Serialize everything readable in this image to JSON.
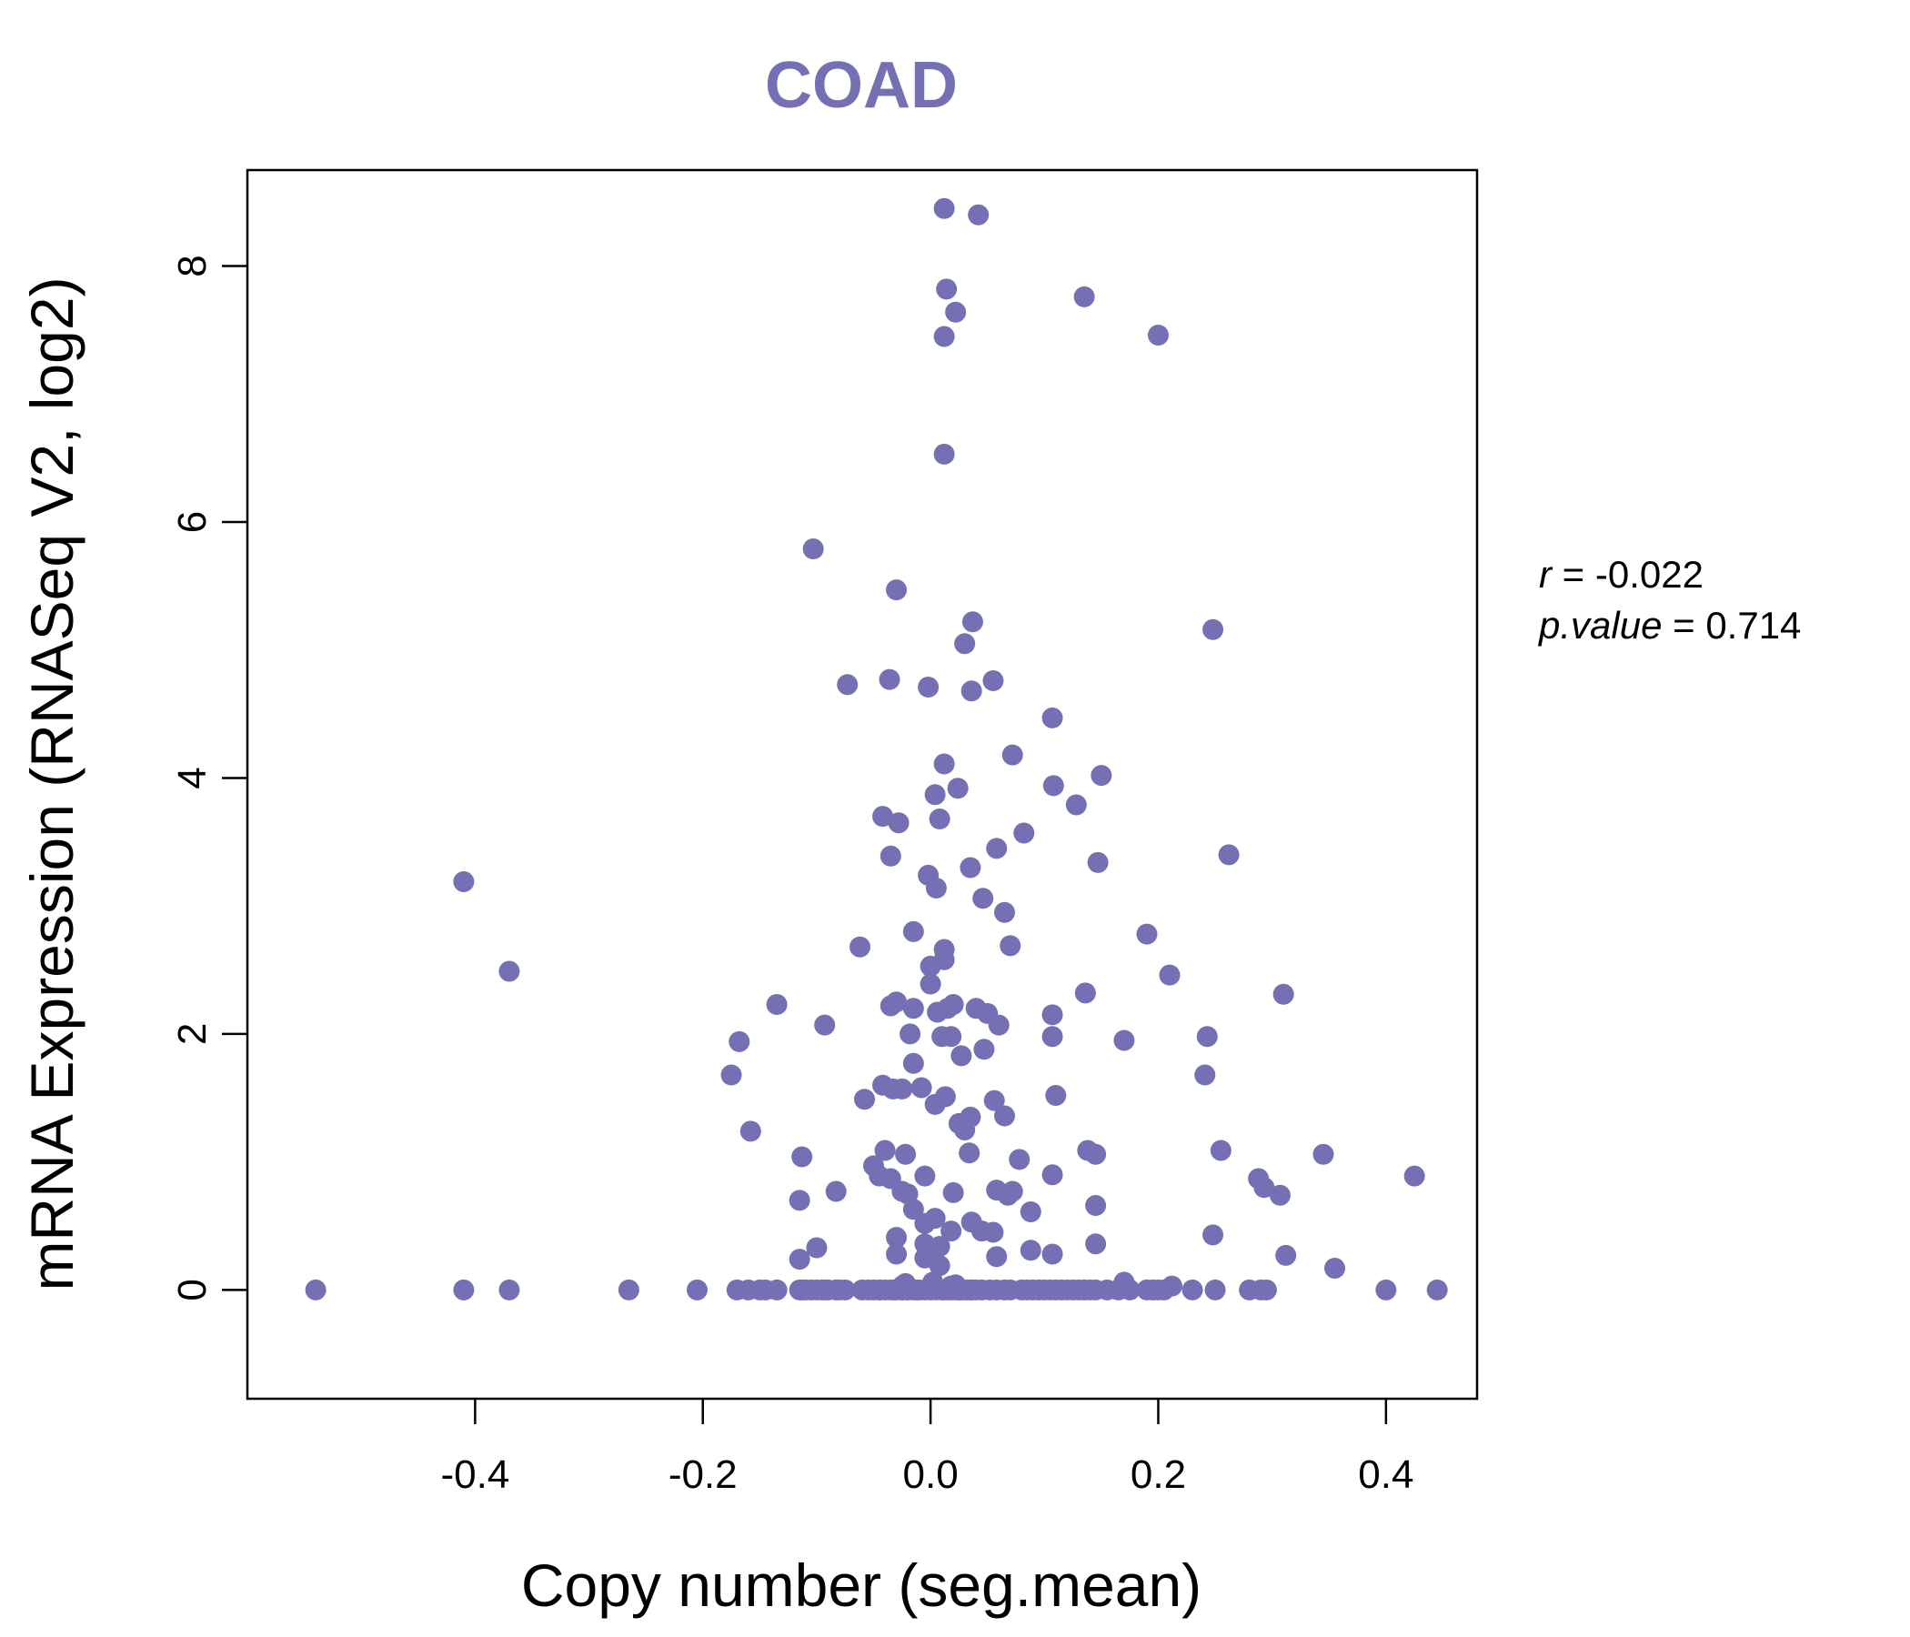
{
  "chart_data": {
    "type": "scatter",
    "title": "COAD",
    "xlabel": "Copy number (seg.mean)",
    "ylabel": "mRNA Expression (RNASeq V2, log2)",
    "xlim": [
      -0.6,
      0.48
    ],
    "ylim": [
      -0.85,
      8.75
    ],
    "xticks": [
      -0.4,
      -0.2,
      0.0,
      0.2,
      0.4
    ],
    "xtick_labels": [
      "-0.4",
      "-0.2",
      "0.0",
      "0.2",
      "0.4"
    ],
    "yticks": [
      0,
      2,
      4,
      6,
      8
    ],
    "ytick_labels": [
      "0",
      "2",
      "4",
      "6",
      "8"
    ],
    "grid": false,
    "legend": "none",
    "point_color": "#7570B3",
    "stats": {
      "r_label": "r",
      "r_value": "-0.022",
      "p_label": "p.value",
      "p_value": "0.714"
    },
    "x": [
      -0.54,
      -0.41,
      -0.37,
      -0.265,
      -0.205,
      -0.17,
      -0.16,
      -0.15,
      -0.145,
      -0.135,
      -0.115,
      -0.113,
      -0.11,
      -0.105,
      -0.1,
      -0.092,
      -0.083,
      -0.075,
      -0.06,
      -0.055,
      -0.045,
      -0.04,
      -0.035,
      -0.032,
      -0.03,
      -0.025,
      -0.02,
      -0.015,
      -0.01,
      -0.005,
      0.0,
      0.005,
      0.01,
      0.012,
      0.015,
      0.018,
      0.022,
      0.028,
      0.032,
      0.036,
      0.04,
      0.045,
      0.052,
      0.058,
      0.065,
      0.07,
      0.012,
      0.042,
      0.014,
      0.022,
      0.012,
      0.135,
      0.2,
      0.012,
      -0.103,
      -0.03,
      0.037,
      0.03,
      0.248,
      -0.073,
      -0.036,
      -0.002,
      0.036,
      0.055,
      0.107,
      0.012,
      0.072,
      0.15,
      0.108,
      0.024,
      0.004,
      0.128,
      -0.042,
      -0.028,
      0.008,
      0.082,
      0.058,
      -0.035,
      0.262,
      0.147,
      0.035,
      -0.002,
      0.005,
      0.046,
      0.065,
      -0.41,
      0.19,
      -0.015,
      -0.062,
      0.07,
      0.012,
      0.0,
      0.012,
      -0.37,
      0.21,
      0.0,
      0.136,
      0.31,
      -0.03,
      -0.035,
      -0.135,
      0.04,
      0.02,
      0.015,
      0.05,
      -0.015,
      0.107,
      0.006,
      -0.093,
      0.06,
      -0.018,
      0.243,
      0.01,
      0.018,
      0.107,
      0.17,
      -0.168,
      0.047,
      0.027,
      -0.015,
      -0.175,
      0.241,
      -0.042,
      -0.025,
      -0.033,
      -0.008,
      0.11,
      -0.058,
      0.013,
      0.004,
      0.056,
      0.065,
      0.035,
      0.025,
      0.03,
      -0.158,
      0.255,
      0.138,
      0.145,
      0.034,
      -0.04,
      0.345,
      -0.022,
      -0.113,
      0.078,
      -0.05,
      0.425,
      0.107,
      -0.005,
      -0.035,
      0.288,
      -0.045,
      0.293,
      0.058,
      -0.025,
      -0.02,
      0.072,
      0.02,
      0.307,
      -0.083,
      0.068,
      -0.115,
      0.145,
      0.088,
      -0.015,
      0.004,
      0.036,
      -0.005,
      0.018,
      0.045,
      0.055,
      0.248,
      -0.03,
      0.008,
      0.145,
      -0.005,
      0.088,
      0.312,
      0.107,
      -0.1,
      0.058,
      -0.03,
      -0.005,
      0.355,
      -0.115,
      0.008,
      -0.022,
      0.002,
      0.17,
      -0.025,
      0.018,
      0.212,
      0.022,
      0.08,
      0.085,
      0.09,
      0.095,
      0.1,
      0.105,
      0.11,
      0.115,
      0.12,
      0.125,
      0.13,
      0.135,
      0.14,
      0.145,
      0.155,
      0.165,
      0.175,
      0.19,
      0.195,
      0.2,
      0.205,
      0.23,
      0.25,
      0.28,
      0.29,
      0.295,
      0.4,
      0.445,
      -0.08,
      -0.09,
      -0.095,
      -0.05,
      -0.045,
      -0.025,
      -0.012,
      0.025,
      0.035,
      -0.02,
      0.026
    ],
    "y": [
      0,
      0,
      0,
      0,
      0,
      0,
      0,
      0,
      0,
      0,
      0,
      0,
      0,
      0,
      0,
      0,
      0,
      0,
      0,
      0,
      0,
      0,
      0,
      0,
      0,
      0,
      0,
      0,
      0,
      0,
      0,
      0,
      0,
      0,
      0,
      0,
      0,
      0,
      0,
      0,
      0,
      0,
      0,
      0,
      0,
      0,
      8.45,
      8.4,
      7.82,
      7.64,
      7.45,
      7.76,
      7.46,
      6.53,
      5.79,
      5.47,
      5.22,
      5.05,
      5.16,
      4.73,
      4.77,
      4.71,
      4.68,
      4.76,
      4.47,
      4.11,
      4.18,
      4.02,
      3.94,
      3.92,
      3.87,
      3.79,
      3.7,
      3.65,
      3.68,
      3.57,
      3.45,
      3.39,
      3.4,
      3.34,
      3.3,
      3.24,
      3.14,
      3.06,
      2.95,
      3.19,
      2.78,
      2.8,
      2.68,
      2.69,
      2.66,
      2.53,
      2.58,
      2.49,
      2.46,
      2.39,
      2.32,
      2.31,
      2.25,
      2.22,
      2.23,
      2.2,
      2.23,
      2.2,
      2.16,
      2.2,
      2.15,
      2.17,
      2.07,
      2.07,
      2.0,
      1.98,
      1.98,
      1.98,
      1.98,
      1.95,
      1.94,
      1.88,
      1.83,
      1.77,
      1.68,
      1.68,
      1.6,
      1.57,
      1.57,
      1.58,
      1.52,
      1.49,
      1.51,
      1.45,
      1.48,
      1.36,
      1.35,
      1.3,
      1.25,
      1.24,
      1.09,
      1.09,
      1.06,
      1.07,
      1.09,
      1.06,
      1.06,
      1.04,
      1.02,
      0.97,
      0.89,
      0.9,
      0.89,
      0.87,
      0.87,
      0.89,
      0.8,
      0.78,
      0.77,
      0.75,
      0.77,
      0.76,
      0.74,
      0.77,
      0.74,
      0.7,
      0.66,
      0.61,
      0.63,
      0.56,
      0.53,
      0.52,
      0.46,
      0.46,
      0.45,
      0.43,
      0.41,
      0.34,
      0.36,
      0.36,
      0.31,
      0.27,
      0.28,
      0.33,
      0.26,
      0.28,
      0.25,
      0.17,
      0.24,
      0.19,
      0.05,
      0.06,
      0.06,
      0.03,
      0.03,
      0.03,
      0.04,
      0,
      0,
      0,
      0,
      0,
      0,
      0,
      0,
      0,
      0,
      0,
      0,
      0,
      0,
      0,
      0,
      0,
      0,
      0,
      0,
      0,
      0,
      0,
      0,
      0,
      0,
      0,
      0,
      0,
      0,
      0,
      0,
      0,
      0,
      0,
      0,
      0,
      0,
      0
    ]
  }
}
